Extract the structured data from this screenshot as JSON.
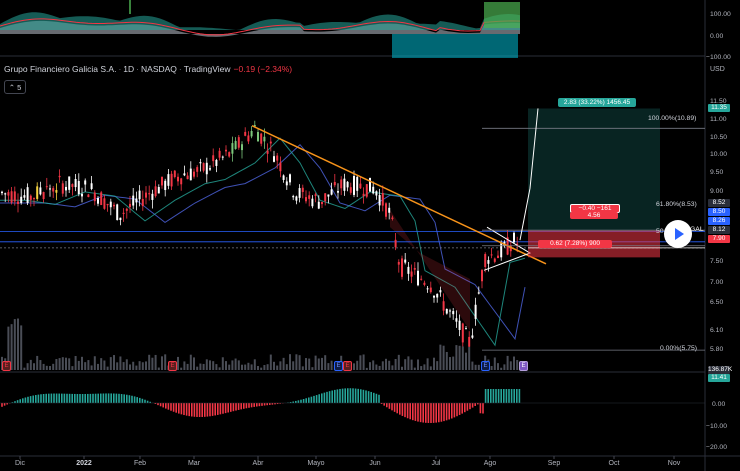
{
  "header": {
    "symbol": "Grupo Financiero Galicia S.A.",
    "interval": "1D",
    "exchange": "NASDAQ",
    "source": "TradingView",
    "change": "−0.19 (−2.34%)",
    "toggle_value": "5"
  },
  "currency": "USD",
  "colors": {
    "up": "#26a69a",
    "down": "#f23645",
    "accent": "#2962ff",
    "trend": "#f7931a",
    "bg": "#000000"
  },
  "top_osc_axis": [
    "100.00",
    "0.00",
    "−100.00"
  ],
  "price_axis": [
    "11.50",
    "11.00",
    "10.50",
    "10.00",
    "9.50",
    "9.00",
    "8.50",
    "8.00",
    "7.50",
    "7.00",
    "6.50",
    "6.10",
    "5.80"
  ],
  "vol_tag": "136.87K",
  "bottom_osc_axis": [
    "11.41",
    "0.00",
    "−10.00",
    "−20.00"
  ],
  "price_tags": [
    {
      "text": "11.35",
      "color": "#26a69a"
    },
    {
      "text": "8.52",
      "color": "#2a2e39"
    },
    {
      "text": "8.50",
      "color": "#2962ff"
    },
    {
      "text": "8.26",
      "color": "#2962ff"
    },
    {
      "text": "8.12",
      "color": "#2a2e39"
    },
    {
      "text": "7.90",
      "color": "#f23645"
    }
  ],
  "ticker_tag": "GAL",
  "fib": {
    "f100": "100.00%(10.89)",
    "f618": "61.80%(8.53)",
    "f50": "50",
    "f0": "0.00%(5.75)"
  },
  "long_position": {
    "target_label": "2.83 (33.22%) 1456.45",
    "stop_label_1": "−0.40 −161",
    "stop_label_2": "4.56",
    "stop_label_3": "0.62 (7.28%) 900"
  },
  "earnings_markers": [
    "E",
    "E",
    "E",
    "E",
    "E",
    "E"
  ],
  "x_axis": [
    "Dic",
    "2022",
    "Feb",
    "Mar",
    "Abr",
    "Mayo",
    "Jun",
    "Jul",
    "Ago",
    "Sep",
    "Oct",
    "Nov"
  ],
  "chart_data": {
    "type": "line",
    "title": "Grupo Financiero Galicia S.A. · 1D · NASDAQ",
    "x_categories": [
      "Dic",
      "2022",
      "Feb",
      "Mar",
      "Abr",
      "Mayo",
      "Jun",
      "Jul",
      "Ago"
    ],
    "series": [
      {
        "values": [
          9.4,
          9.6,
          9.2,
          10.0,
          10.9,
          9.8,
          9.4,
          6.3,
          8.1
        ]
      }
    ],
    "ylabel": "USD",
    "ylim": [
      5.6,
      11.6
    ]
  }
}
